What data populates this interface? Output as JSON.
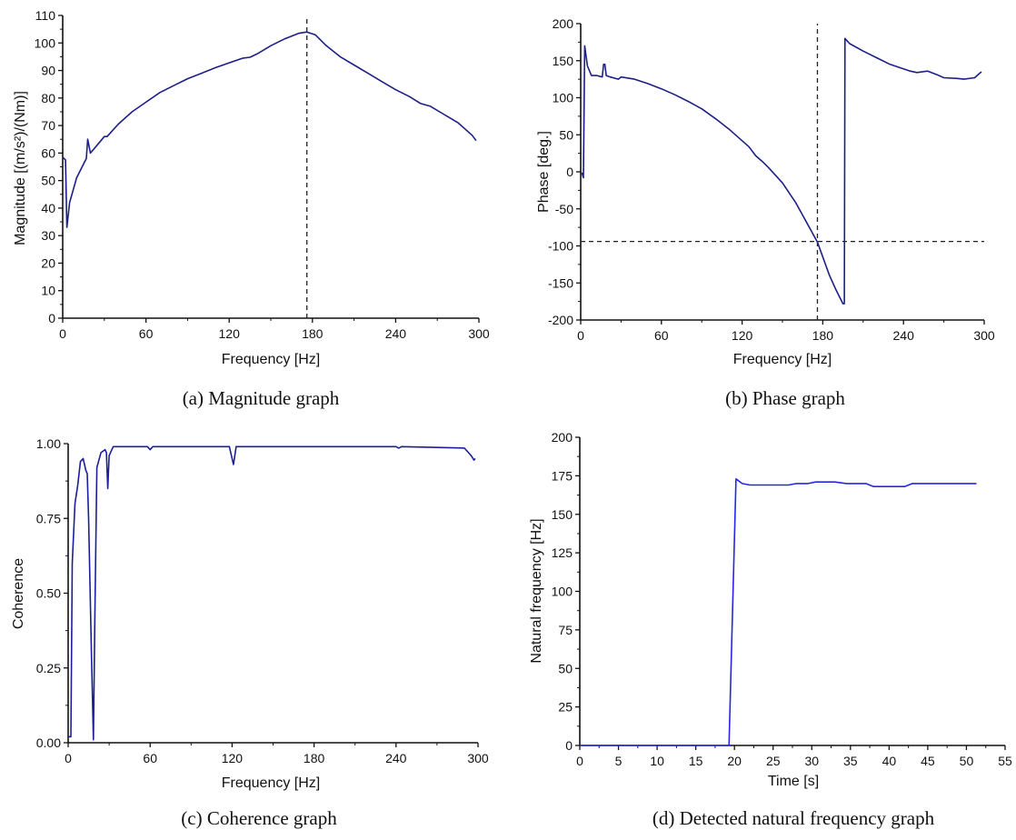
{
  "chart_data": [
    {
      "type": "line",
      "caption": "(a) Magnitude graph",
      "xlabel": "Frequency [Hz]",
      "ylabel": "Magnitude [(m/s²)/(Nm)]",
      "xlim": [
        0,
        300
      ],
      "ylim": [
        0,
        110
      ],
      "xticks": [
        0,
        60,
        120,
        180,
        240,
        300
      ],
      "yticks": [
        0,
        10,
        20,
        30,
        40,
        50,
        60,
        70,
        80,
        90,
        100,
        110
      ],
      "grid": false,
      "line_color": "#1c1f86",
      "vline": 176,
      "series": [
        {
          "name": "Magnitude",
          "points": [
            [
              0,
              58.5
            ],
            [
              1,
              58
            ],
            [
              2,
              57.5
            ],
            [
              3,
              33
            ],
            [
              5,
              42
            ],
            [
              10,
              51
            ],
            [
              15,
              56
            ],
            [
              17,
              58
            ],
            [
              18,
              65
            ],
            [
              20,
              60
            ],
            [
              25,
              63
            ],
            [
              30,
              66
            ],
            [
              32,
              66
            ],
            [
              40,
              70.5
            ],
            [
              50,
              75
            ],
            [
              60,
              78.5
            ],
            [
              70,
              82
            ],
            [
              80,
              84.5
            ],
            [
              90,
              87
            ],
            [
              100,
              89
            ],
            [
              110,
              91
            ],
            [
              120,
              92.8
            ],
            [
              130,
              94.5
            ],
            [
              135,
              94.8
            ],
            [
              140,
              96
            ],
            [
              150,
              99
            ],
            [
              160,
              101.5
            ],
            [
              170,
              103.5
            ],
            [
              176,
              104
            ],
            [
              182,
              103
            ],
            [
              190,
              99
            ],
            [
              200,
              95
            ],
            [
              210,
              92
            ],
            [
              220,
              89
            ],
            [
              230,
              86
            ],
            [
              240,
              83
            ],
            [
              250,
              80.5
            ],
            [
              258,
              78
            ],
            [
              265,
              77
            ],
            [
              275,
              74
            ],
            [
              285,
              71
            ],
            [
              295,
              66.5
            ],
            [
              298,
              64.5
            ]
          ]
        }
      ]
    },
    {
      "type": "line",
      "caption": "(b) Phase graph",
      "xlabel": "Frequency [Hz]",
      "ylabel": "Phase [deg.]",
      "xlim": [
        0,
        300
      ],
      "ylim": [
        -200,
        200
      ],
      "xticks": [
        0,
        60,
        120,
        180,
        240,
        300
      ],
      "yticks": [
        -200,
        -150,
        -100,
        -50,
        0,
        50,
        100,
        150,
        200
      ],
      "grid": false,
      "line_color": "#1c1f86",
      "vline": 176,
      "hline": -94,
      "series": [
        {
          "name": "Phase",
          "points": [
            [
              0,
              -2
            ],
            [
              1,
              -2
            ],
            [
              2,
              -8
            ],
            [
              3,
              170
            ],
            [
              5,
              143
            ],
            [
              8,
              130
            ],
            [
              12,
              130
            ],
            [
              16,
              128
            ],
            [
              17,
              145
            ],
            [
              18,
              145
            ],
            [
              19,
              130
            ],
            [
              22,
              128
            ],
            [
              28,
              125
            ],
            [
              30,
              128
            ],
            [
              40,
              125
            ],
            [
              50,
              119
            ],
            [
              60,
              112
            ],
            [
              70,
              104
            ],
            [
              80,
              95
            ],
            [
              90,
              85
            ],
            [
              100,
              72
            ],
            [
              110,
              58
            ],
            [
              120,
              42
            ],
            [
              125,
              34
            ],
            [
              130,
              22
            ],
            [
              135,
              14
            ],
            [
              140,
              5
            ],
            [
              150,
              -15
            ],
            [
              160,
              -42
            ],
            [
              170,
              -75
            ],
            [
              176,
              -95
            ],
            [
              180,
              -115
            ],
            [
              185,
              -140
            ],
            [
              190,
              -160
            ],
            [
              195,
              -178
            ],
            [
              196,
              -178
            ],
            [
              196.5,
              180
            ],
            [
              200,
              173
            ],
            [
              210,
              163
            ],
            [
              220,
              154
            ],
            [
              230,
              145
            ],
            [
              240,
              139
            ],
            [
              245,
              136
            ],
            [
              250,
              134
            ],
            [
              258,
              136
            ],
            [
              265,
              131
            ],
            [
              270,
              127
            ],
            [
              280,
              126
            ],
            [
              285,
              125
            ],
            [
              293,
              127
            ],
            [
              296,
              132
            ],
            [
              298,
              135
            ]
          ]
        }
      ]
    },
    {
      "type": "line",
      "caption": "(c) Coherence graph",
      "xlabel": "Frequency [Hz]",
      "ylabel": "Coherence",
      "xlim": [
        0,
        300
      ],
      "ylim": [
        0,
        1
      ],
      "xticks": [
        0,
        60,
        120,
        180,
        240,
        300
      ],
      "yticks": [
        "0.00",
        "0.25",
        "0.50",
        "0.75",
        "1.00"
      ],
      "grid": false,
      "line_color": "#1c1f9a",
      "series": [
        {
          "name": "Coherence",
          "points": [
            [
              0,
              0.02
            ],
            [
              2,
              0.02
            ],
            [
              3,
              0.6
            ],
            [
              5,
              0.8
            ],
            [
              7,
              0.86
            ],
            [
              9,
              0.94
            ],
            [
              11,
              0.95
            ],
            [
              13,
              0.91
            ],
            [
              14,
              0.9
            ],
            [
              15,
              0.75
            ],
            [
              17,
              0.3
            ],
            [
              18.5,
              0.01
            ],
            [
              19.5,
              0.4
            ],
            [
              21,
              0.92
            ],
            [
              24,
              0.97
            ],
            [
              27,
              0.98
            ],
            [
              28,
              0.97
            ],
            [
              29,
              0.85
            ],
            [
              30,
              0.96
            ],
            [
              33,
              0.99
            ],
            [
              40,
              0.99
            ],
            [
              58,
              0.99
            ],
            [
              60,
              0.98
            ],
            [
              62,
              0.99
            ],
            [
              118,
              0.99
            ],
            [
              121,
              0.93
            ],
            [
              123,
              0.99
            ],
            [
              180,
              0.99
            ],
            [
              240,
              0.99
            ],
            [
              242,
              0.985
            ],
            [
              244,
              0.99
            ],
            [
              290,
              0.985
            ],
            [
              293,
              0.97
            ],
            [
              295,
              0.96
            ],
            [
              297,
              0.945
            ],
            [
              298,
              0.95
            ]
          ]
        }
      ]
    },
    {
      "type": "line",
      "caption": "(d) Detected natural frequency graph",
      "xlabel": "Time [s]",
      "ylabel": "Natural frequency [Hz]",
      "xlim": [
        0,
        55
      ],
      "ylim": [
        0,
        200
      ],
      "xticks": [
        0,
        5,
        10,
        15,
        20,
        25,
        30,
        35,
        40,
        45,
        50,
        55
      ],
      "yticks": [
        0,
        25,
        50,
        75,
        100,
        125,
        150,
        175,
        200
      ],
      "grid": false,
      "line_color": "#2626e6",
      "series": [
        {
          "name": "Natural frequency",
          "points": [
            [
              0,
              0
            ],
            [
              19.3,
              0
            ],
            [
              20.2,
              173
            ],
            [
              21,
              170
            ],
            [
              22,
              169
            ],
            [
              27,
              169
            ],
            [
              28,
              170
            ],
            [
              29.5,
              170
            ],
            [
              30.5,
              171
            ],
            [
              33,
              171
            ],
            [
              34.5,
              170
            ],
            [
              37,
              170
            ],
            [
              38,
              168
            ],
            [
              42,
              168
            ],
            [
              43,
              170
            ],
            [
              51.3,
              170
            ]
          ]
        }
      ]
    }
  ]
}
